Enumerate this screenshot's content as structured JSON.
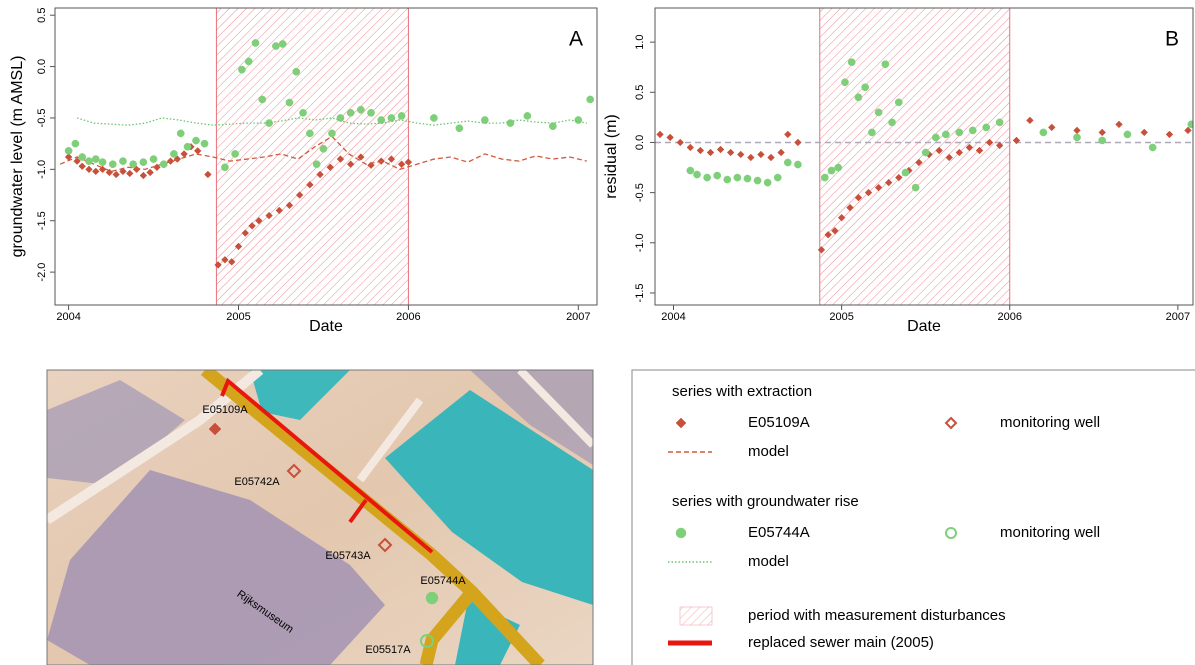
{
  "chart_data": [
    {
      "type": "scatter",
      "panel_label": "A",
      "xlabel": "Date",
      "ylabel": "groundwater level (m AMSL)",
      "xlim": [
        2003.92,
        2007.11
      ],
      "xticks": [
        2004,
        2005,
        2006,
        2007
      ],
      "ylim": [
        -2.32,
        0.57
      ],
      "yticks": [
        {
          "value": -2,
          "label": "-2.0"
        },
        -1.5,
        {
          "value": -1,
          "label": "-1.0"
        },
        -0.5,
        {
          "value": 0,
          "label": "0.0"
        },
        0.5
      ],
      "shade": [
        2004.87,
        2006.0
      ],
      "shade_color": "#e8707a",
      "series": [
        {
          "name": "E05109A",
          "color": "#c8503a",
          "marker": "diamond",
          "x": [
            2004.0,
            2004.05,
            2004.08,
            2004.12,
            2004.16,
            2004.2,
            2004.24,
            2004.28,
            2004.32,
            2004.36,
            2004.4,
            2004.44,
            2004.48,
            2004.52,
            2004.56,
            2004.6,
            2004.64,
            2004.68,
            2004.72,
            2004.76,
            2004.82,
            2004.88,
            2004.92,
            2004.96,
            2005.0,
            2005.04,
            2005.08,
            2005.12,
            2005.18,
            2005.24,
            2005.3,
            2005.36,
            2005.42,
            2005.48,
            2005.54,
            2005.6,
            2005.66,
            2005.72,
            2005.78,
            2005.84,
            2005.9,
            2005.96,
            2006.0
          ],
          "values": [
            -0.88,
            -0.92,
            -0.97,
            -1.0,
            -1.02,
            -1.0,
            -1.03,
            -1.05,
            -1.02,
            -1.04,
            -1.0,
            -1.06,
            -1.03,
            -0.98,
            -0.95,
            -0.92,
            -0.9,
            -0.85,
            -0.78,
            -0.82,
            -1.05,
            -1.93,
            -1.88,
            -1.9,
            -1.75,
            -1.62,
            -1.55,
            -1.5,
            -1.45,
            -1.4,
            -1.35,
            -1.25,
            -1.15,
            -1.05,
            -0.98,
            -0.9,
            -0.95,
            -0.88,
            -0.96,
            -0.92,
            -0.9,
            -0.95,
            -0.93
          ]
        },
        {
          "name": "model",
          "color": "#d05a3f",
          "line_style": "dashed",
          "x": [
            2003.95,
            2004.05,
            2004.15,
            2004.25,
            2004.35,
            2004.45,
            2004.55,
            2004.65,
            2004.75,
            2004.85,
            2004.95,
            2005.05,
            2005.15,
            2005.25,
            2005.35,
            2005.45,
            2005.55,
            2005.65,
            2005.75,
            2005.85,
            2005.95,
            2006.05,
            2006.15,
            2006.25,
            2006.35,
            2006.45,
            2006.55,
            2006.65,
            2006.75,
            2006.85,
            2006.95,
            2007.05
          ],
          "values": [
            -0.95,
            -0.88,
            -0.95,
            -1.02,
            -0.98,
            -1.0,
            -0.95,
            -0.9,
            -0.85,
            -0.88,
            -0.92,
            -0.9,
            -0.88,
            -0.85,
            -0.9,
            -0.78,
            -0.68,
            -0.85,
            -0.95,
            -0.92,
            -1.0,
            -0.95,
            -0.9,
            -0.88,
            -0.93,
            -0.85,
            -0.9,
            -0.92,
            -0.87,
            -0.9,
            -0.88,
            -0.92
          ]
        },
        {
          "name": "E05744A",
          "color": "#7fcf7a",
          "marker": "circle",
          "x": [
            2004.0,
            2004.04,
            2004.08,
            2004.12,
            2004.16,
            2004.2,
            2004.26,
            2004.32,
            2004.38,
            2004.44,
            2004.5,
            2004.56,
            2004.62,
            2004.66,
            2004.7,
            2004.75,
            2004.8,
            2004.92,
            2004.98,
            2005.02,
            2005.06,
            2005.1,
            2005.14,
            2005.18,
            2005.22,
            2005.26,
            2005.3,
            2005.34,
            2005.38,
            2005.42,
            2005.46,
            2005.5,
            2005.55,
            2005.6,
            2005.66,
            2005.72,
            2005.78,
            2005.84,
            2005.9,
            2005.96,
            2006.15,
            2006.3,
            2006.45,
            2006.6,
            2006.7,
            2006.85,
            2007.0,
            2007.07
          ],
          "values": [
            -0.82,
            -0.75,
            -0.88,
            -0.92,
            -0.9,
            -0.93,
            -0.95,
            -0.92,
            -0.95,
            -0.93,
            -0.9,
            -0.95,
            -0.85,
            -0.65,
            -0.78,
            -0.72,
            -0.75,
            -0.98,
            -0.85,
            -0.03,
            0.05,
            0.23,
            -0.32,
            -0.55,
            0.2,
            0.22,
            -0.35,
            -0.05,
            -0.45,
            -0.65,
            -0.95,
            -0.8,
            -0.65,
            -0.5,
            -0.45,
            -0.42,
            -0.45,
            -0.52,
            -0.5,
            -0.48,
            -0.5,
            -0.6,
            -0.52,
            -0.55,
            -0.48,
            -0.58,
            -0.52,
            -0.32
          ]
        },
        {
          "name": "model",
          "color": "#6cc56a",
          "line_style": "dotted",
          "x": [
            2003.95,
            2004.05,
            2004.15,
            2004.25,
            2004.35,
            2004.45,
            2004.55,
            2004.65,
            2004.75,
            2004.85,
            2004.95,
            2005.05,
            2005.15,
            2005.25,
            2005.35,
            2005.45,
            2005.55,
            2005.65,
            2005.75,
            2005.85,
            2005.95,
            2006.05,
            2006.15,
            2006.25,
            2006.35,
            2006.45,
            2006.55,
            2006.65,
            2006.75,
            2006.85,
            2006.95,
            2007.05
          ],
          "values": [
            null,
            -0.5,
            -0.55,
            -0.56,
            -0.57,
            -0.55,
            -0.5,
            -0.52,
            -0.55,
            -0.57,
            -0.56,
            -0.55,
            -0.55,
            -0.53,
            -0.5,
            -0.52,
            -0.5,
            -0.55,
            -0.56,
            -0.55,
            -0.52,
            -0.55,
            -0.57,
            -0.55,
            -0.53,
            -0.55,
            -0.55,
            -0.52,
            -0.54,
            -0.55,
            -0.52,
            -0.55
          ]
        }
      ]
    },
    {
      "type": "scatter",
      "panel_label": "B",
      "xlabel": "Date",
      "ylabel": "residual (m)",
      "xlim": [
        2003.89,
        2007.09
      ],
      "xticks": [
        2004,
        2005,
        2006,
        2007
      ],
      "ylim": [
        -1.62,
        1.34
      ],
      "yticks": [
        -1.5,
        {
          "value": -1,
          "label": "-1.0"
        },
        -0.5,
        {
          "value": 0,
          "label": "0.0"
        },
        0.5,
        {
          "value": 1,
          "label": "1.0"
        }
      ],
      "shade": [
        2004.87,
        2006.0
      ],
      "shade_color": "#e8707a",
      "ref_line": 0,
      "series": [
        {
          "color": "#c8503a",
          "marker": "diamond",
          "x": [
            2003.92,
            2003.98,
            2004.04,
            2004.1,
            2004.16,
            2004.22,
            2004.28,
            2004.34,
            2004.4,
            2004.46,
            2004.52,
            2004.58,
            2004.64,
            2004.68,
            2004.74,
            2004.88,
            2004.92,
            2004.96,
            2005.0,
            2005.05,
            2005.1,
            2005.16,
            2005.22,
            2005.28,
            2005.34,
            2005.4,
            2005.46,
            2005.52,
            2005.58,
            2005.64,
            2005.7,
            2005.76,
            2005.82,
            2005.88,
            2005.94,
            2006.04,
            2006.12,
            2006.25,
            2006.4,
            2006.55,
            2006.65,
            2006.8,
            2006.95,
            2007.06
          ],
          "values": [
            0.08,
            0.05,
            0.0,
            -0.05,
            -0.08,
            -0.1,
            -0.07,
            -0.1,
            -0.12,
            -0.15,
            -0.12,
            -0.15,
            -0.1,
            0.08,
            0.0,
            -1.07,
            -0.92,
            -0.88,
            -0.75,
            -0.65,
            -0.55,
            -0.5,
            -0.45,
            -0.4,
            -0.35,
            -0.28,
            -0.2,
            -0.12,
            -0.08,
            -0.15,
            -0.1,
            -0.05,
            -0.08,
            0.0,
            -0.03,
            0.02,
            0.22,
            0.15,
            0.12,
            0.1,
            0.18,
            0.1,
            0.08,
            0.12
          ]
        },
        {
          "color": "#7fcf7a",
          "marker": "circle",
          "x": [
            2004.1,
            2004.14,
            2004.2,
            2004.26,
            2004.32,
            2004.38,
            2004.44,
            2004.5,
            2004.56,
            2004.62,
            2004.68,
            2004.74,
            2004.9,
            2004.94,
            2004.98,
            2005.02,
            2005.06,
            2005.1,
            2005.14,
            2005.18,
            2005.22,
            2005.26,
            2005.3,
            2005.34,
            2005.38,
            2005.44,
            2005.5,
            2005.56,
            2005.62,
            2005.7,
            2005.78,
            2005.86,
            2005.94,
            2006.2,
            2006.4,
            2006.55,
            2006.7,
            2006.85,
            2007.08
          ],
          "values": [
            -0.28,
            -0.32,
            -0.35,
            -0.33,
            -0.37,
            -0.35,
            -0.36,
            -0.38,
            -0.4,
            -0.35,
            -0.2,
            -0.22,
            -0.35,
            -0.28,
            -0.25,
            0.6,
            0.8,
            0.45,
            0.55,
            0.1,
            0.3,
            0.78,
            0.2,
            0.4,
            -0.3,
            -0.45,
            -0.1,
            0.05,
            0.08,
            0.1,
            0.12,
            0.15,
            0.2,
            0.1,
            0.05,
            0.02,
            0.08,
            -0.05,
            0.18
          ]
        }
      ]
    }
  ],
  "map": {
    "building_label": "Rijksmuseum",
    "wells": [
      "E05109A",
      "E05742A",
      "E05743A",
      "E05744A",
      "E05517A"
    ]
  },
  "legend": {
    "groups": [
      {
        "title": "series with extraction",
        "well_label": "monitoring well"
      },
      {
        "title": "series with groundwater rise",
        "well_label": "monitoring well"
      }
    ],
    "period_label": "period with measurement disturbances",
    "sewer_label": "replaced sewer main (2005)"
  }
}
